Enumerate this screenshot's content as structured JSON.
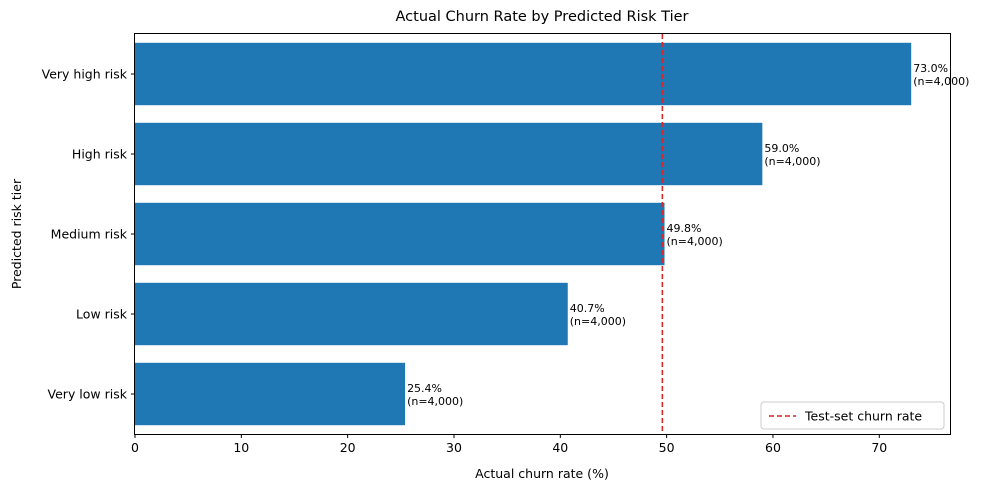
{
  "chart_data": {
    "type": "bar",
    "orientation": "horizontal",
    "title": "Actual Churn Rate by Predicted Risk Tier",
    "xlabel": "Actual churn rate (%)",
    "ylabel": "Predicted risk tier",
    "categories": [
      "Very low risk",
      "Low risk",
      "Medium risk",
      "High risk",
      "Very high risk"
    ],
    "values": [
      25.4,
      40.7,
      49.8,
      59.0,
      73.0
    ],
    "value_labels": [
      "25.4%",
      "40.7%",
      "49.8%",
      "59.0%",
      "73.0%"
    ],
    "count_labels": [
      "(n=4,000)",
      "(n=4,000)",
      "(n=4,000)",
      "(n=4,000)",
      "(n=4,000)"
    ],
    "xlim": [
      0,
      76.65
    ],
    "xticks": [
      0,
      10,
      20,
      30,
      40,
      50,
      60,
      70
    ],
    "reference_line": {
      "x": 49.6,
      "label": "Test-set churn rate",
      "color": "#d62728",
      "style": "dashed"
    },
    "legend_position": "lower-right",
    "bar_color": "#1f77b4",
    "grid": false
  }
}
